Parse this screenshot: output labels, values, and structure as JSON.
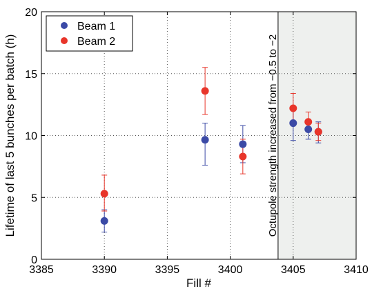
{
  "chart_data": {
    "type": "scatter",
    "xlabel": "Fill #",
    "ylabel": "Lifetime of last 5 bunches per batch (h)",
    "xlim": [
      3385,
      3410
    ],
    "ylim": [
      0,
      20
    ],
    "x_ticks": [
      3385,
      3390,
      3395,
      3400,
      3405,
      3410
    ],
    "y_ticks": [
      0,
      5,
      10,
      15,
      20
    ],
    "grid": true,
    "legend_position": "top-left",
    "series": [
      {
        "name": "Beam 1",
        "color": "#3b4aa6",
        "points": [
          {
            "x": 3390,
            "y": 3.1,
            "err_low": 2.2,
            "err_high": 4.0
          },
          {
            "x": 3398,
            "y": 9.65,
            "err_low": 7.6,
            "err_high": 11.0
          },
          {
            "x": 3401,
            "y": 9.3,
            "err_low": 7.8,
            "err_high": 10.8
          },
          {
            "x": 3405,
            "y": 11.0,
            "err_low": 9.6,
            "err_high": 12.3
          },
          {
            "x": 3406.2,
            "y": 10.5,
            "err_low": 9.7,
            "err_high": 11.2
          },
          {
            "x": 3407,
            "y": 10.3,
            "err_low": 9.4,
            "err_high": 11.1
          }
        ]
      },
      {
        "name": "Beam 2",
        "color": "#e8352a",
        "points": [
          {
            "x": 3390,
            "y": 5.3,
            "err_low": 3.9,
            "err_high": 6.8
          },
          {
            "x": 3398,
            "y": 13.6,
            "err_low": 11.7,
            "err_high": 15.5
          },
          {
            "x": 3401,
            "y": 8.3,
            "err_low": 6.9,
            "err_high": 9.7
          },
          {
            "x": 3405,
            "y": 12.2,
            "err_low": 11.0,
            "err_high": 13.4
          },
          {
            "x": 3406.2,
            "y": 11.1,
            "err_low": 10.4,
            "err_high": 11.9
          },
          {
            "x": 3407,
            "y": 10.3,
            "err_low": 9.6,
            "err_high": 11.0
          }
        ]
      }
    ],
    "shaded_region": {
      "x_start": 3403.8,
      "x_end": 3410,
      "color": "#eef0ee"
    },
    "annotation": {
      "text": "Octupole strength increased from −0.5 to −2",
      "x": 3403.8
    }
  }
}
